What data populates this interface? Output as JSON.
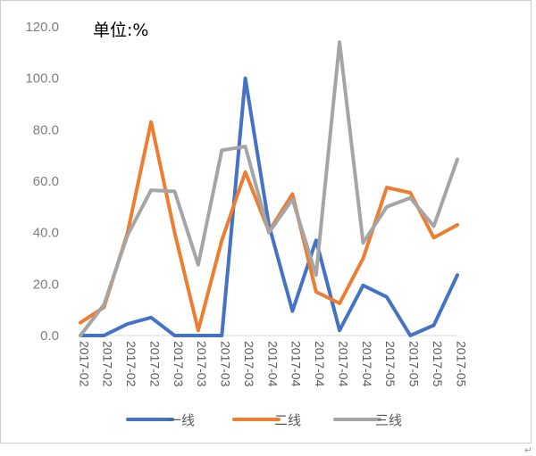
{
  "chart_data": {
    "type": "line",
    "unit_label": "单位:%",
    "categories": [
      "2017-02",
      "2017-02",
      "2017-02",
      "2017-02",
      "2017-03",
      "2017-03",
      "2017-03",
      "2017-03",
      "2017-04",
      "2017-04",
      "2017-04",
      "2017-04",
      "2017-04",
      "2017-05",
      "2017-05",
      "2017-05",
      "2017-05"
    ],
    "y_ticks": [
      "0.0",
      "20.0",
      "40.0",
      "60.0",
      "80.0",
      "100.0",
      "120.0"
    ],
    "ylim": [
      0,
      120
    ],
    "grid": false,
    "legend_position": "bottom",
    "series": [
      {
        "name": "一线",
        "color": "#4472C4",
        "values": [
          0,
          0,
          4.5,
          7,
          0,
          0,
          0,
          100,
          43,
          9.5,
          37,
          2,
          19.5,
          15,
          0,
          4,
          23.5
        ]
      },
      {
        "name": "二线",
        "color": "#ED7D31",
        "values": [
          5,
          11,
          40,
          83,
          40,
          2,
          37,
          63.5,
          40.5,
          55,
          17,
          12.5,
          30,
          57.5,
          55.5,
          38,
          43
        ]
      },
      {
        "name": "三线",
        "color": "#A5A5A5",
        "values": [
          0,
          12,
          39,
          56.5,
          56,
          27.5,
          72,
          73.5,
          40,
          53,
          23.5,
          114,
          36,
          50,
          53.5,
          42.5,
          68.5
        ]
      }
    ]
  },
  "corner_mark": "↵"
}
